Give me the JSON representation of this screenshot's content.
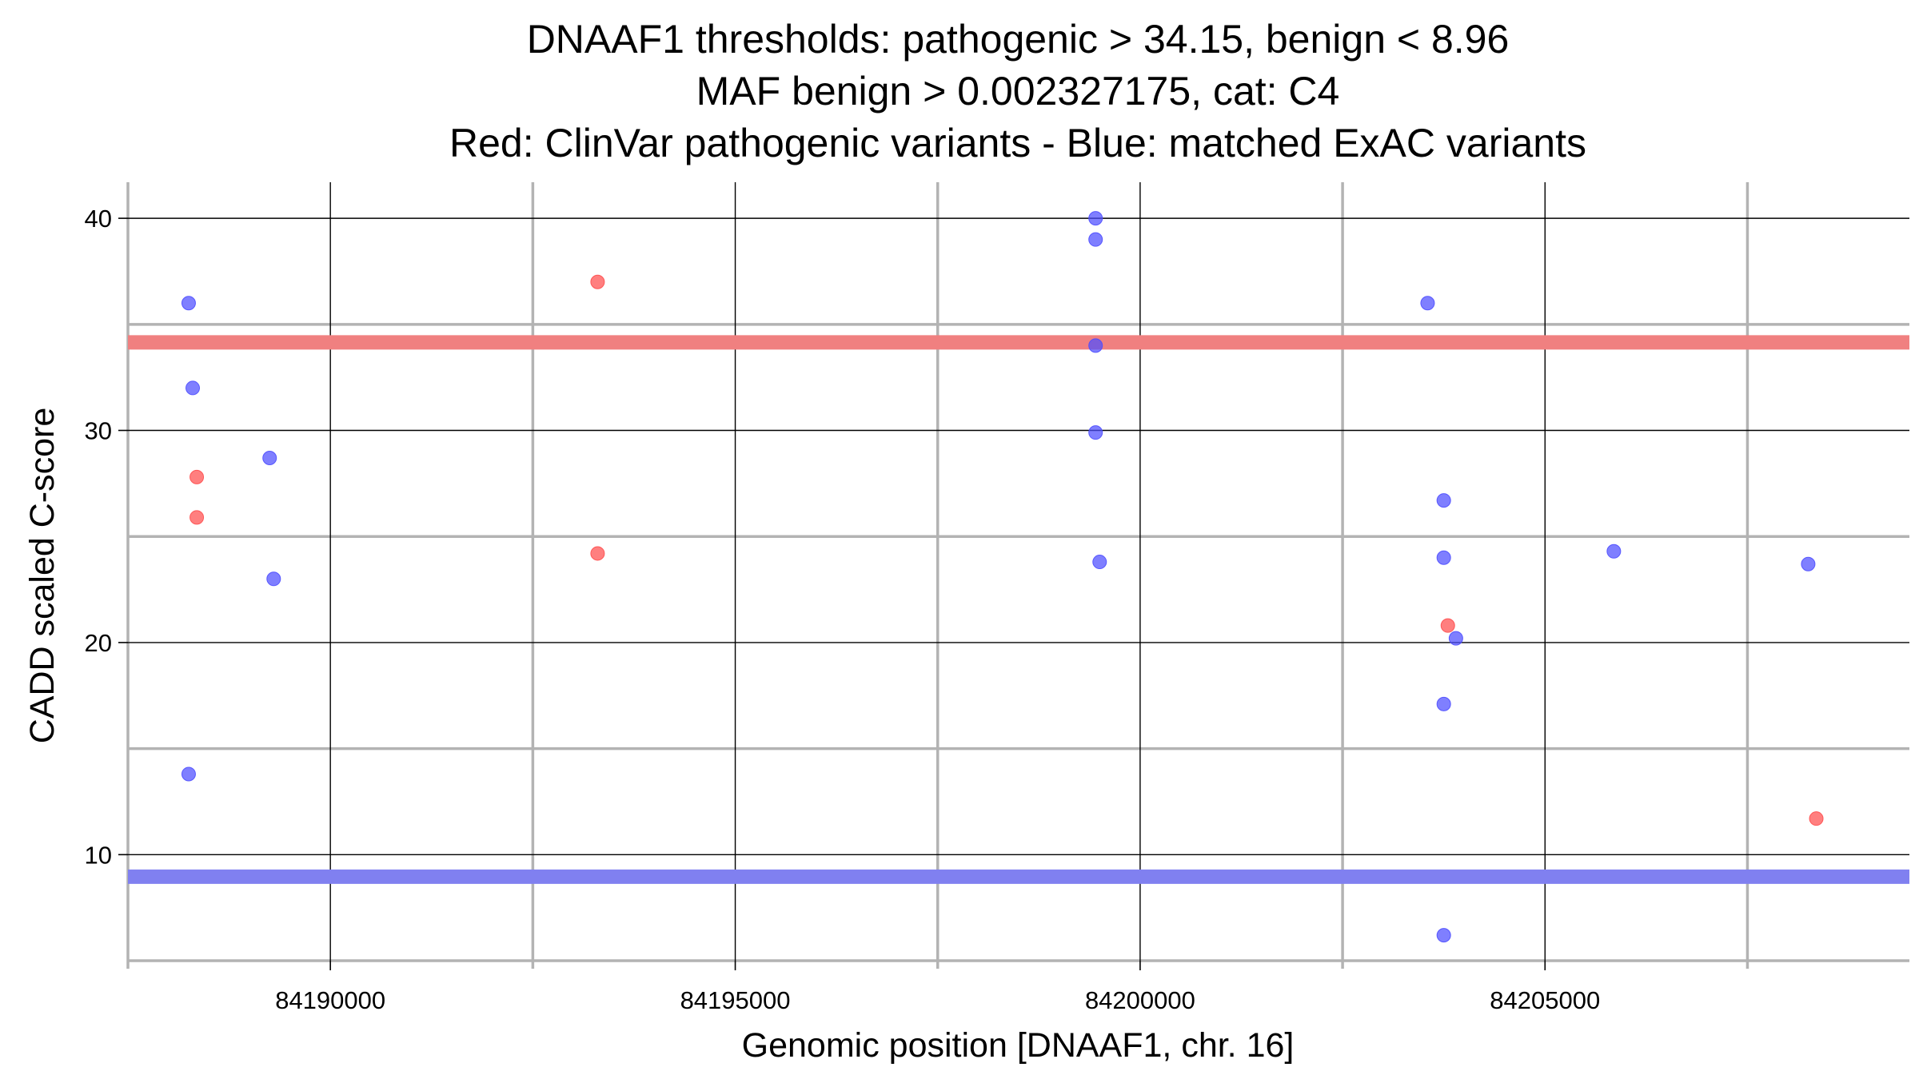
{
  "chart_data": {
    "type": "scatter",
    "title_lines": [
      "DNAAF1 thresholds: pathogenic > 34.15, benign < 8.96",
      "MAF benign > 0.002327175, cat: C4",
      "Red: ClinVar pathogenic variants - Blue: matched ExAC variants"
    ],
    "xlabel": "Genomic position [DNAAF1, chr. 16]",
    "ylabel": "CADD scaled C-score",
    "xlim": [
      84187500,
      84209500
    ],
    "ylim": [
      5,
      41.7
    ],
    "x_major_ticks": [
      84190000,
      84195000,
      84200000,
      84205000
    ],
    "x_tick_labels": [
      "84190000",
      "84195000",
      "84200000",
      "84205000"
    ],
    "x_minor_ticks": [
      84187500,
      84192500,
      84197500,
      84202500,
      84207500
    ],
    "y_major_ticks": [
      10,
      20,
      30,
      40
    ],
    "y_tick_labels": [
      "10",
      "20",
      "30",
      "40"
    ],
    "y_minor_ticks": [
      5,
      15,
      25,
      35
    ],
    "grid": true,
    "thresholds": [
      {
        "name": "pathogenic",
        "value": 34.15,
        "color": "#f08080"
      },
      {
        "name": "benign",
        "value": 8.96,
        "color": "#8080f0"
      }
    ],
    "series": [
      {
        "color": "#ff4d4d",
        "points": [
          {
            "x": 84188350,
            "y": 27.8
          },
          {
            "x": 84188350,
            "y": 25.9
          },
          {
            "x": 84193300,
            "y": 37.0
          },
          {
            "x": 84193300,
            "y": 24.2
          },
          {
            "x": 84203800,
            "y": 20.8
          },
          {
            "x": 84208350,
            "y": 11.7
          }
        ]
      },
      {
        "color": "#4d4dff",
        "points": [
          {
            "x": 84188250,
            "y": 36.0
          },
          {
            "x": 84188300,
            "y": 32.0
          },
          {
            "x": 84189250,
            "y": 28.7
          },
          {
            "x": 84189300,
            "y": 23.0
          },
          {
            "x": 84188250,
            "y": 13.8
          },
          {
            "x": 84199450,
            "y": 40.0
          },
          {
            "x": 84199450,
            "y": 39.0
          },
          {
            "x": 84199450,
            "y": 34.0
          },
          {
            "x": 84199450,
            "y": 29.9
          },
          {
            "x": 84199500,
            "y": 23.8
          },
          {
            "x": 84203550,
            "y": 36.0
          },
          {
            "x": 84203750,
            "y": 26.7
          },
          {
            "x": 84203750,
            "y": 24.0
          },
          {
            "x": 84203900,
            "y": 20.2
          },
          {
            "x": 84203750,
            "y": 17.1
          },
          {
            "x": 84203750,
            "y": 6.2
          },
          {
            "x": 84205850,
            "y": 24.3
          },
          {
            "x": 84208250,
            "y": 23.7
          }
        ]
      }
    ]
  }
}
